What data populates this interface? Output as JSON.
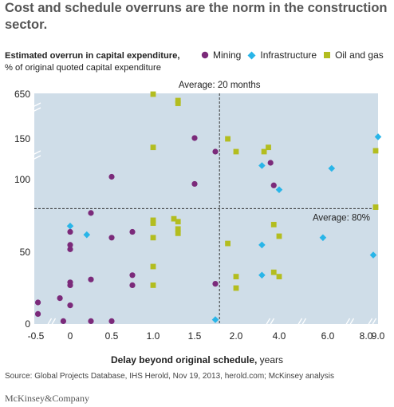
{
  "title": "Cost and schedule overruns are the norm in the construction sector.",
  "y_title_bold": "Estimated overrun in capital expenditure,",
  "y_title_rest": "% of original quoted capital expenditure",
  "x_title_bold": "Delay beyond original schedule,",
  "x_title_rest": " years",
  "source": "Source: Global Projects Database, IHS Herold, Nov 19, 2013, herold.com; McKinsey analysis",
  "brand": "McKinsey&Company",
  "legend": [
    {
      "label": "Mining",
      "shape": "circle",
      "color": "#7b2a7a"
    },
    {
      "label": "Infrastructure",
      "shape": "diamond",
      "color": "#29b5e8"
    },
    {
      "label": "Oil and gas",
      "shape": "square",
      "color": "#b3bd1f"
    }
  ],
  "chart_data": {
    "type": "scatter",
    "plot_bg": "#cfdde8",
    "x_ticks": [
      "-0.5",
      "0",
      "0.5",
      "1.0",
      "1.5",
      "2.0",
      "4.0",
      "6.0",
      "8.0",
      "9.0"
    ],
    "y_ticks": [
      "0",
      "50",
      "100",
      "150",
      "650"
    ],
    "x_breaks": [
      "between 0 and -0.5",
      "between 2.0 and 4.0",
      "between 4.0 and 6.0",
      "between 6.0 and 8.0",
      "between 8.0 and 9.0"
    ],
    "y_breaks": [
      "between 100 and 150",
      "between 150 and 650"
    ],
    "ref_lines": [
      {
        "axis": "x",
        "value": 1.8,
        "label": "Average: 20 months"
      },
      {
        "axis": "y",
        "value": 80,
        "label": "Average: 80%"
      }
    ],
    "series": [
      {
        "name": "Mining",
        "points": [
          [
            -0.47,
            15
          ],
          [
            -0.47,
            7
          ],
          [
            -0.15,
            18
          ],
          [
            -0.1,
            2
          ],
          [
            0,
            29
          ],
          [
            0,
            27
          ],
          [
            0,
            13
          ],
          [
            0,
            52
          ],
          [
            0,
            55
          ],
          [
            0,
            64
          ],
          [
            0.25,
            77
          ],
          [
            0.25,
            31
          ],
          [
            0.25,
            2
          ],
          [
            0.5,
            60
          ],
          [
            0.5,
            102
          ],
          [
            0.5,
            2
          ],
          [
            0.75,
            64
          ],
          [
            0.75,
            34
          ],
          [
            0.75,
            27
          ],
          [
            1.5,
            160
          ],
          [
            1.5,
            97
          ],
          [
            1.75,
            28
          ],
          [
            1.75,
            120
          ],
          [
            3.6,
            112
          ],
          [
            3.75,
            96
          ]
        ]
      },
      {
        "name": "Infrastructure",
        "points": [
          [
            0.0,
            68
          ],
          [
            0.2,
            62
          ],
          [
            1.75,
            3
          ],
          [
            3.2,
            110
          ],
          [
            3.2,
            55
          ],
          [
            3.2,
            34
          ],
          [
            4.0,
            93
          ],
          [
            5.8,
            60
          ],
          [
            6.2,
            108
          ],
          [
            8.6,
            48
          ],
          [
            9.0,
            175
          ]
        ]
      },
      {
        "name": "Oil and gas",
        "points": [
          [
            1.0,
            650
          ],
          [
            1.0,
            130
          ],
          [
            1.0,
            70
          ],
          [
            1.0,
            72
          ],
          [
            1.0,
            60
          ],
          [
            1.0,
            40
          ],
          [
            1.0,
            27
          ],
          [
            1.25,
            73
          ],
          [
            1.3,
            610
          ],
          [
            1.3,
            585
          ],
          [
            1.3,
            71
          ],
          [
            1.3,
            66
          ],
          [
            1.3,
            63
          ],
          [
            1.9,
            150
          ],
          [
            1.9,
            56
          ],
          [
            2.0,
            120
          ],
          [
            2.0,
            33
          ],
          [
            2.0,
            25
          ],
          [
            3.3,
            120
          ],
          [
            3.5,
            130
          ],
          [
            3.75,
            69
          ],
          [
            3.75,
            36
          ],
          [
            4.0,
            61
          ],
          [
            4.0,
            33
          ],
          [
            8.8,
            122
          ],
          [
            8.8,
            81
          ]
        ]
      }
    ]
  }
}
